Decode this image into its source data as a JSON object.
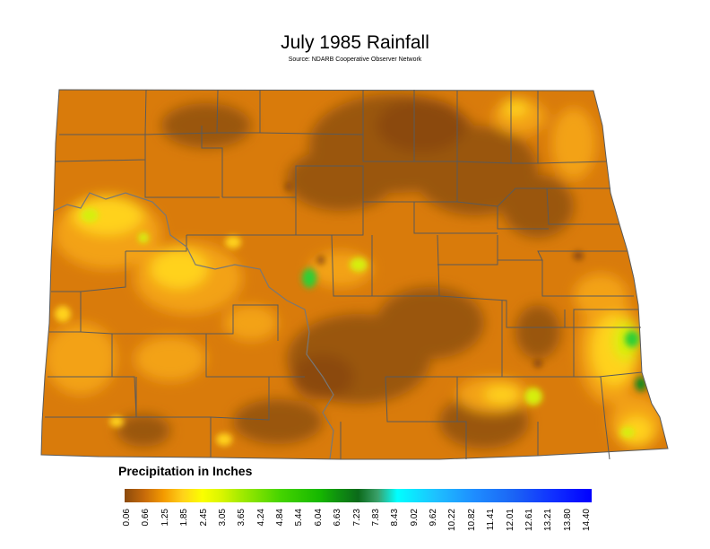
{
  "title": "July 1985 Rainfall",
  "subtitle": "Source: NDARB Cooperative Observer Network",
  "legend": {
    "title": "Precipitation in Inches",
    "ticks": [
      "0.06",
      "0.66",
      "1.25",
      "1.85",
      "2.45",
      "3.05",
      "3.65",
      "4.24",
      "4.84",
      "5.44",
      "6.04",
      "6.63",
      "7.23",
      "7.83",
      "8.43",
      "9.02",
      "9.62",
      "10.22",
      "10.82",
      "11.41",
      "12.01",
      "12.61",
      "13.21",
      "13.80",
      "14.40"
    ],
    "stops": [
      {
        "value": 0.06,
        "color": "#8b4a0c"
      },
      {
        "value": 0.66,
        "color": "#c66a0a"
      },
      {
        "value": 1.25,
        "color": "#f39a00"
      },
      {
        "value": 1.85,
        "color": "#ffd21a"
      },
      {
        "value": 2.45,
        "color": "#fbff00"
      },
      {
        "value": 3.05,
        "color": "#d8f500"
      },
      {
        "value": 3.65,
        "color": "#a2ea00"
      },
      {
        "value": 4.84,
        "color": "#45d400"
      },
      {
        "value": 6.04,
        "color": "#16b800"
      },
      {
        "value": 6.63,
        "color": "#0f8f10"
      },
      {
        "value": 7.23,
        "color": "#0b6a1a"
      },
      {
        "value": 7.83,
        "color": "#3aa06a"
      },
      {
        "value": 8.43,
        "color": "#00ffff"
      },
      {
        "value": 9.62,
        "color": "#1ec0ff"
      },
      {
        "value": 10.82,
        "color": "#1e8cff"
      },
      {
        "value": 12.01,
        "color": "#1b64f5"
      },
      {
        "value": 13.21,
        "color": "#1030ff"
      },
      {
        "value": 14.4,
        "color": "#0000ff"
      }
    ]
  },
  "colors": {
    "base": "#d97b0b",
    "dark": "#9a5710",
    "darker": "#8b4a0c",
    "light": "#f3a213",
    "yellow": "#ffd21a",
    "lime": "#d6ef10",
    "green": "#2fcf35",
    "deep_green": "#0b8a1b",
    "county_lines": "#5a5a5a",
    "river": "#777777"
  }
}
